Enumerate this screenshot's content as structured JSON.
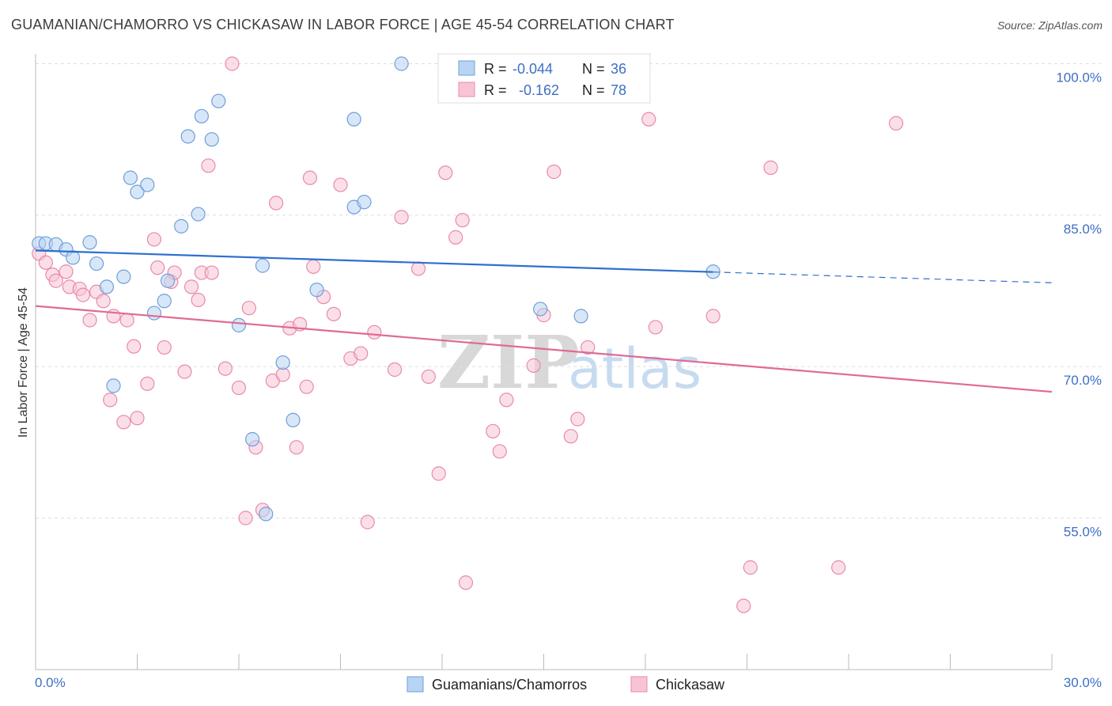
{
  "title": "GUAMANIAN/CHAMORRO VS CHICKASAW IN LABOR FORCE | AGE 45-54 CORRELATION CHART",
  "source": "Source: ZipAtlas.com",
  "watermark": {
    "zip": "ZIP",
    "atlas": "atlas"
  },
  "legend_top": [
    {
      "r_label": "R =",
      "r_value": "-0.044",
      "n_label": "N =",
      "n_value": "36"
    },
    {
      "r_label": "R =",
      "r_value": "-0.162",
      "n_label": "N =",
      "n_value": "78"
    }
  ],
  "legend_bottom": [
    "Guamanians/Chamorros",
    "Chickasaw"
  ],
  "colors": {
    "blue_fill": "#b8d3f3",
    "blue_stroke": "#6f9fd8",
    "blue_line": "#2f6fcf",
    "pink_fill": "#f8c4d5",
    "pink_stroke": "#e88aaa",
    "pink_line": "#e06a95",
    "axis_text": "#3d6fc4",
    "grid": "#dddddd"
  },
  "chart_data": {
    "type": "scatter",
    "xlabel": "",
    "ylabel": "In Labor Force | Age 45-54",
    "xlim": [
      0,
      30
    ],
    "ylim": [
      40,
      101.5
    ],
    "x_tick_labels": [
      "0.0%",
      "30.0%"
    ],
    "y_ticks": [
      55,
      70,
      85,
      100
    ],
    "y_tick_labels": [
      "55.0%",
      "70.0%",
      "85.0%",
      "100.0%"
    ],
    "series": [
      {
        "name": "Guamanians/Chamorros",
        "points": [
          [
            0.1,
            82.2
          ],
          [
            0.3,
            82.2
          ],
          [
            0.6,
            82.1
          ],
          [
            0.9,
            81.6
          ],
          [
            1.1,
            80.8
          ],
          [
            1.6,
            82.3
          ],
          [
            1.8,
            80.2
          ],
          [
            2.1,
            77.9
          ],
          [
            2.3,
            68.1
          ],
          [
            2.6,
            78.9
          ],
          [
            2.8,
            88.7
          ],
          [
            3.0,
            87.3
          ],
          [
            3.3,
            88.0
          ],
          [
            3.5,
            75.3
          ],
          [
            3.8,
            76.5
          ],
          [
            3.9,
            78.5
          ],
          [
            4.3,
            83.9
          ],
          [
            4.5,
            92.8
          ],
          [
            4.8,
            85.1
          ],
          [
            4.9,
            94.8
          ],
          [
            5.2,
            92.5
          ],
          [
            5.4,
            96.3
          ],
          [
            6.0,
            74.1
          ],
          [
            6.4,
            62.8
          ],
          [
            6.7,
            80.0
          ],
          [
            6.8,
            55.4
          ],
          [
            7.3,
            70.4
          ],
          [
            7.6,
            64.7
          ],
          [
            8.3,
            77.6
          ],
          [
            9.4,
            94.5
          ],
          [
            9.4,
            85.8
          ],
          [
            9.7,
            86.3
          ],
          [
            10.8,
            100.0
          ],
          [
            14.9,
            75.7
          ],
          [
            16.1,
            75.0
          ],
          [
            20.0,
            79.4
          ]
        ]
      },
      {
        "name": "Chickasaw",
        "points": [
          [
            0.1,
            81.2
          ],
          [
            0.3,
            80.3
          ],
          [
            0.5,
            79.1
          ],
          [
            0.6,
            78.5
          ],
          [
            0.9,
            79.4
          ],
          [
            1.0,
            77.9
          ],
          [
            1.3,
            77.7
          ],
          [
            1.4,
            77.1
          ],
          [
            1.6,
            74.6
          ],
          [
            1.8,
            77.4
          ],
          [
            2.0,
            76.5
          ],
          [
            2.2,
            66.7
          ],
          [
            2.3,
            75.0
          ],
          [
            2.6,
            64.5
          ],
          [
            2.7,
            74.6
          ],
          [
            2.9,
            72.0
          ],
          [
            3.0,
            64.9
          ],
          [
            3.3,
            68.3
          ],
          [
            3.5,
            82.6
          ],
          [
            3.6,
            79.8
          ],
          [
            3.8,
            71.9
          ],
          [
            4.0,
            78.4
          ],
          [
            4.1,
            79.3
          ],
          [
            4.4,
            69.5
          ],
          [
            4.6,
            77.9
          ],
          [
            4.8,
            76.6
          ],
          [
            4.9,
            79.3
          ],
          [
            5.1,
            89.9
          ],
          [
            5.2,
            79.3
          ],
          [
            5.6,
            69.8
          ],
          [
            5.8,
            100.0
          ],
          [
            6.0,
            67.9
          ],
          [
            6.2,
            55.0
          ],
          [
            6.3,
            75.8
          ],
          [
            6.5,
            62.0
          ],
          [
            6.7,
            55.8
          ],
          [
            7.0,
            68.6
          ],
          [
            7.1,
            86.2
          ],
          [
            7.3,
            69.2
          ],
          [
            7.5,
            73.8
          ],
          [
            7.7,
            62.0
          ],
          [
            7.8,
            74.2
          ],
          [
            8.0,
            68.0
          ],
          [
            8.1,
            88.7
          ],
          [
            8.2,
            79.9
          ],
          [
            8.5,
            76.9
          ],
          [
            8.8,
            75.2
          ],
          [
            9.0,
            88.0
          ],
          [
            9.3,
            70.8
          ],
          [
            9.6,
            71.3
          ],
          [
            9.8,
            54.6
          ],
          [
            10.0,
            73.4
          ],
          [
            10.6,
            69.7
          ],
          [
            10.8,
            84.8
          ],
          [
            11.3,
            79.7
          ],
          [
            11.6,
            69.0
          ],
          [
            11.9,
            59.4
          ],
          [
            12.1,
            89.2
          ],
          [
            12.4,
            82.8
          ],
          [
            12.6,
            84.5
          ],
          [
            12.7,
            48.6
          ],
          [
            13.5,
            63.6
          ],
          [
            13.7,
            61.6
          ],
          [
            13.9,
            66.7
          ],
          [
            14.7,
            70.1
          ],
          [
            15.0,
            75.1
          ],
          [
            15.3,
            89.3
          ],
          [
            15.8,
            63.1
          ],
          [
            16.0,
            64.8
          ],
          [
            16.3,
            71.9
          ],
          [
            18.1,
            94.5
          ],
          [
            18.3,
            73.9
          ],
          [
            20.0,
            75.0
          ],
          [
            20.9,
            46.3
          ],
          [
            21.1,
            50.1
          ],
          [
            21.7,
            89.7
          ],
          [
            23.7,
            50.1
          ],
          [
            25.4,
            94.1
          ]
        ]
      }
    ],
    "trend_lines": [
      {
        "series": "Guamanians/Chamorros",
        "x": [
          0,
          30
        ],
        "y": [
          81.5,
          78.3
        ],
        "solid_until_x": 20.0
      },
      {
        "series": "Chickasaw",
        "x": [
          0,
          30
        ],
        "y": [
          76.0,
          67.5
        ],
        "solid_until_x": 30.0
      }
    ]
  }
}
